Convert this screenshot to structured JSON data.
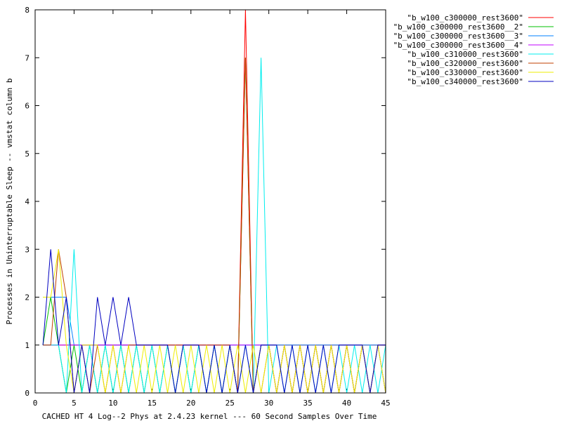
{
  "chart_data": {
    "type": "line",
    "title": "",
    "xlabel": "CACHED HT 4 Log--2 Phys at 2.4.23 kernel --- 60 Second Samples Over Time",
    "ylabel": "Processes in Uninterruptable Sleep -- vmstat column b",
    "xlim": [
      0,
      45
    ],
    "ylim": [
      0,
      8
    ],
    "xticks": [
      0,
      5,
      10,
      15,
      20,
      25,
      30,
      35,
      40,
      45
    ],
    "yticks": [
      0,
      1,
      2,
      3,
      4,
      5,
      6,
      7,
      8
    ],
    "legend_position": "outside-top-right",
    "series": [
      {
        "name": "\"b_w100_c300000_rest3600\"",
        "color": "#ff0000",
        "x": [
          1,
          2,
          3,
          4,
          5,
          6,
          7,
          8,
          9,
          10,
          11,
          12,
          13,
          14,
          15,
          16,
          17,
          18,
          19,
          20,
          21,
          22,
          23,
          24,
          25,
          26,
          27,
          28,
          29,
          30,
          31,
          32,
          33,
          34,
          35,
          36,
          37,
          38,
          39,
          40,
          41,
          42,
          43,
          44,
          45
        ],
        "y": [
          1,
          1,
          1,
          1,
          1,
          1,
          1,
          1,
          1,
          1,
          1,
          1,
          1,
          1,
          1,
          1,
          1,
          1,
          1,
          1,
          1,
          1,
          1,
          1,
          1,
          0,
          8,
          0,
          1,
          1,
          1,
          1,
          1,
          1,
          1,
          1,
          1,
          1,
          1,
          1,
          1,
          1,
          1,
          1,
          1
        ]
      },
      {
        "name": "\"b_w100_c300000_rest3600__2\"",
        "color": "#00c000",
        "x": [
          1,
          2,
          3,
          4,
          5,
          6,
          7,
          8,
          9,
          10,
          11,
          12,
          13,
          14,
          15,
          16,
          17,
          18,
          19,
          20,
          21,
          22,
          23,
          24,
          25,
          26,
          27,
          28,
          29,
          30,
          31,
          32,
          33,
          34,
          35,
          36,
          37,
          38,
          39,
          40,
          41,
          42,
          43,
          44,
          45
        ],
        "y": [
          1,
          2,
          1,
          0,
          1,
          0,
          1,
          0,
          1,
          0,
          1,
          0,
          1,
          0,
          1,
          0,
          1,
          0,
          1,
          0,
          1,
          0,
          1,
          0,
          1,
          0,
          7,
          0,
          1,
          1,
          0,
          1,
          0,
          1,
          0,
          1,
          0,
          1,
          0,
          1,
          0,
          1,
          0,
          1,
          0
        ]
      },
      {
        "name": "\"b_w100_c300000_rest3600__3\"",
        "color": "#0080ff",
        "x": [
          1,
          2,
          3,
          4,
          5,
          6,
          7,
          8,
          9,
          10,
          11,
          12,
          13,
          14,
          15,
          16,
          17,
          18,
          19,
          20,
          21,
          22,
          23,
          24,
          25,
          26,
          27,
          28,
          29,
          30,
          31,
          32,
          33,
          34,
          35,
          36,
          37,
          38,
          39,
          40,
          41,
          42,
          43,
          44,
          45
        ],
        "y": [
          2,
          2,
          2,
          2,
          1,
          1,
          1,
          1,
          1,
          1,
          1,
          1,
          1,
          1,
          1,
          1,
          1,
          1,
          1,
          1,
          1,
          1,
          1,
          1,
          1,
          1,
          1,
          1,
          1,
          1,
          1,
          1,
          1,
          1,
          1,
          1,
          1,
          1,
          1,
          1,
          1,
          1,
          1,
          1,
          1
        ]
      },
      {
        "name": "\"b_w100_c300000_rest3600__4\"",
        "color": "#c000ff",
        "x": [
          1,
          2,
          3,
          4,
          5,
          6,
          7,
          8,
          9,
          10,
          11,
          12,
          13,
          14,
          15,
          16,
          17,
          18,
          19,
          20,
          21,
          22,
          23,
          24,
          25,
          26,
          27,
          28,
          29,
          30,
          31,
          32,
          33,
          34,
          35,
          36,
          37,
          38,
          39,
          40,
          41,
          42,
          43,
          44,
          45
        ],
        "y": [
          1,
          1,
          1,
          1,
          1,
          1,
          1,
          1,
          1,
          1,
          1,
          1,
          1,
          1,
          1,
          1,
          1,
          1,
          1,
          1,
          1,
          1,
          1,
          1,
          1,
          1,
          1,
          1,
          1,
          1,
          0,
          1,
          0,
          1,
          0,
          1,
          0,
          1,
          0,
          1,
          0,
          1,
          0,
          1,
          0
        ]
      },
      {
        "name": "\"b_w100_c310000_rest3600\"",
        "color": "#00eeee",
        "x": [
          1,
          2,
          3,
          4,
          5,
          6,
          7,
          8,
          9,
          10,
          11,
          12,
          13,
          14,
          15,
          16,
          17,
          18,
          19,
          20,
          21,
          22,
          23,
          24,
          25,
          26,
          27,
          28,
          29,
          30,
          31,
          32,
          33,
          34,
          35,
          36,
          37,
          38,
          39,
          40,
          41,
          42,
          43,
          44,
          45
        ],
        "y": [
          1,
          1,
          1,
          0,
          3,
          0,
          1,
          0,
          1,
          0,
          1,
          0,
          1,
          0,
          1,
          0,
          1,
          0,
          1,
          0,
          1,
          0,
          1,
          0,
          1,
          0,
          1,
          0,
          7,
          0,
          1,
          0,
          1,
          0,
          1,
          0,
          1,
          0,
          1,
          0,
          1,
          0,
          1,
          0,
          1
        ]
      },
      {
        "name": "\"b_w100_c320000_rest3600\"",
        "color": "#c04000",
        "x": [
          1,
          2,
          3,
          4,
          5,
          6,
          7,
          8,
          9,
          10,
          11,
          12,
          13,
          14,
          15,
          16,
          17,
          18,
          19,
          20,
          21,
          22,
          23,
          24,
          25,
          26,
          27,
          28,
          29,
          30,
          31,
          32,
          33,
          34,
          35,
          36,
          37,
          38,
          39,
          40,
          41,
          42,
          43,
          44,
          45
        ],
        "y": [
          1,
          1,
          3,
          2,
          0,
          1,
          0,
          1,
          0,
          1,
          0,
          1,
          1,
          1,
          1,
          1,
          1,
          1,
          1,
          1,
          1,
          1,
          1,
          1,
          1,
          0,
          7,
          0,
          0,
          1,
          0,
          1,
          0,
          1,
          0,
          1,
          0,
          1,
          0,
          1,
          0,
          1,
          0,
          1,
          1
        ]
      },
      {
        "name": "\"b_w100_c330000_rest3600\"",
        "color": "#eeee00",
        "x": [
          1,
          2,
          3,
          4,
          5,
          6,
          7,
          8,
          9,
          10,
          11,
          12,
          13,
          14,
          15,
          16,
          17,
          18,
          19,
          20,
          21,
          22,
          23,
          24,
          25,
          26,
          27,
          28,
          29,
          30,
          31,
          32,
          33,
          34,
          35,
          36,
          37,
          38,
          39,
          40,
          41,
          42,
          43,
          44,
          45
        ],
        "y": [
          2,
          2,
          3,
          1,
          0,
          1,
          1,
          1,
          0,
          1,
          0,
          1,
          0,
          1,
          0,
          1,
          0,
          1,
          0,
          1,
          0,
          1,
          0,
          1,
          0,
          1,
          0,
          1,
          0,
          1,
          0,
          1,
          0,
          1,
          0,
          1,
          0,
          1,
          0,
          1,
          0,
          1,
          0,
          1,
          0
        ]
      },
      {
        "name": "\"b_w100_c340000_rest3600\"",
        "color": "#0000c0",
        "x": [
          1,
          2,
          3,
          4,
          5,
          6,
          7,
          8,
          9,
          10,
          11,
          12,
          13,
          14,
          15,
          16,
          17,
          18,
          19,
          20,
          21,
          22,
          23,
          24,
          25,
          26,
          27,
          28,
          29,
          30,
          31,
          32,
          33,
          34,
          35,
          36,
          37,
          38,
          39,
          40,
          41,
          42,
          43,
          44,
          45
        ],
        "y": [
          1,
          3,
          1,
          2,
          0,
          1,
          0,
          2,
          1,
          2,
          1,
          2,
          1,
          1,
          1,
          1,
          1,
          0,
          1,
          1,
          1,
          0,
          1,
          0,
          1,
          0,
          1,
          0,
          1,
          1,
          1,
          0,
          1,
          0,
          1,
          0,
          1,
          0,
          1,
          1,
          1,
          1,
          0,
          1,
          1
        ]
      }
    ]
  }
}
